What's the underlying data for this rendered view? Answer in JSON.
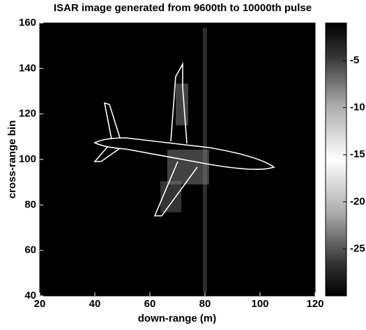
{
  "chart_data": {
    "type": "heatmap",
    "title": "ISAR image generated from 9600th to 10000th pulse",
    "xlabel": "down-range (m)",
    "ylabel": "cross-range bin",
    "xlim": [
      20,
      120
    ],
    "xticks": [
      20,
      40,
      60,
      80,
      100,
      120
    ],
    "ylim": [
      40,
      160
    ],
    "yticks": [
      40,
      60,
      80,
      100,
      120,
      140,
      160
    ],
    "colorbar": {
      "clim": [
        -30,
        -1
      ],
      "ticks": [
        -5,
        -10,
        -15,
        -20,
        -25
      ]
    }
  }
}
